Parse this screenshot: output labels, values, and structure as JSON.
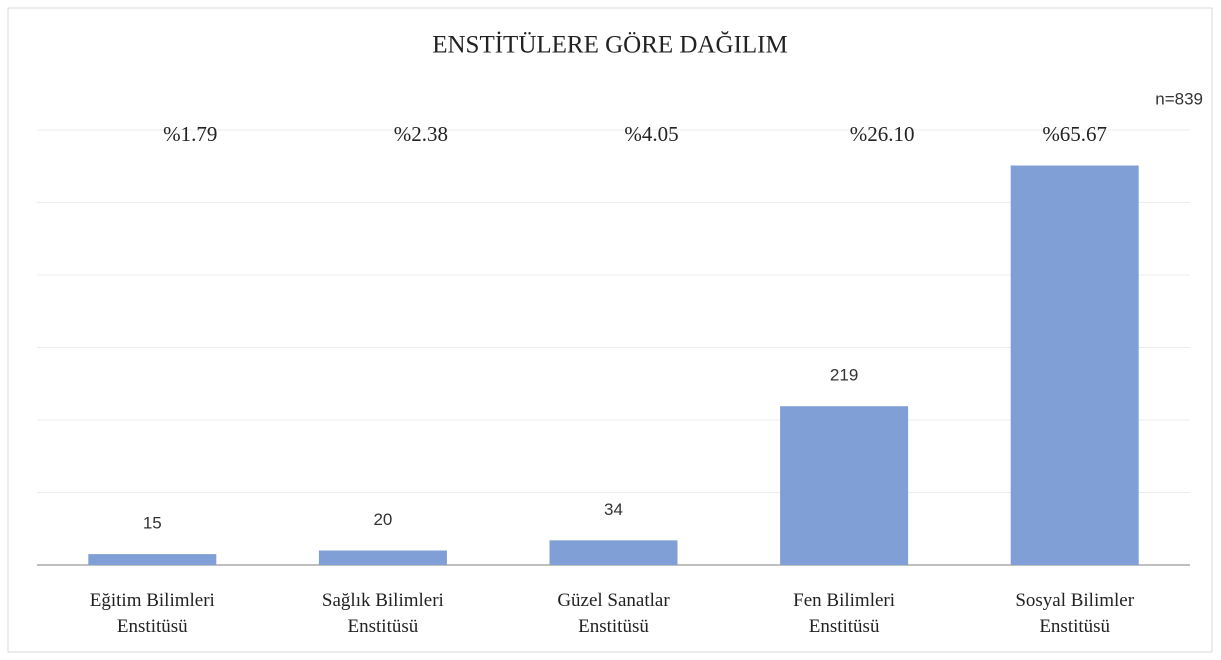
{
  "chart_data": {
    "type": "bar",
    "title": "ENSTİTÜLERE GÖRE DAĞILIM",
    "note": "n=839",
    "categories": [
      "Eğitim Bilimleri\nEnstitüsü",
      "Sağlık Bilimleri\nEnstitüsü",
      "Güzel Sanatlar\nEnstitüsü",
      "Fen Bilimleri\nEnstitüsü",
      "Sosyal Bilimler\nEnstitüsü"
    ],
    "values": [
      15,
      20,
      34,
      219,
      551
    ],
    "value_labels": [
      "15",
      "20",
      "34",
      "219",
      null
    ],
    "percents": [
      1.79,
      2.38,
      4.05,
      26.1,
      65.67
    ],
    "percent_labels": [
      "%1.79",
      "%2.38",
      "%4.05",
      "%26.10",
      "%65.67"
    ],
    "color": "#7f9fd6",
    "ylim": [
      0,
      600
    ],
    "yticks": [
      0,
      100,
      200,
      300,
      400,
      500,
      600
    ],
    "grid": true
  }
}
